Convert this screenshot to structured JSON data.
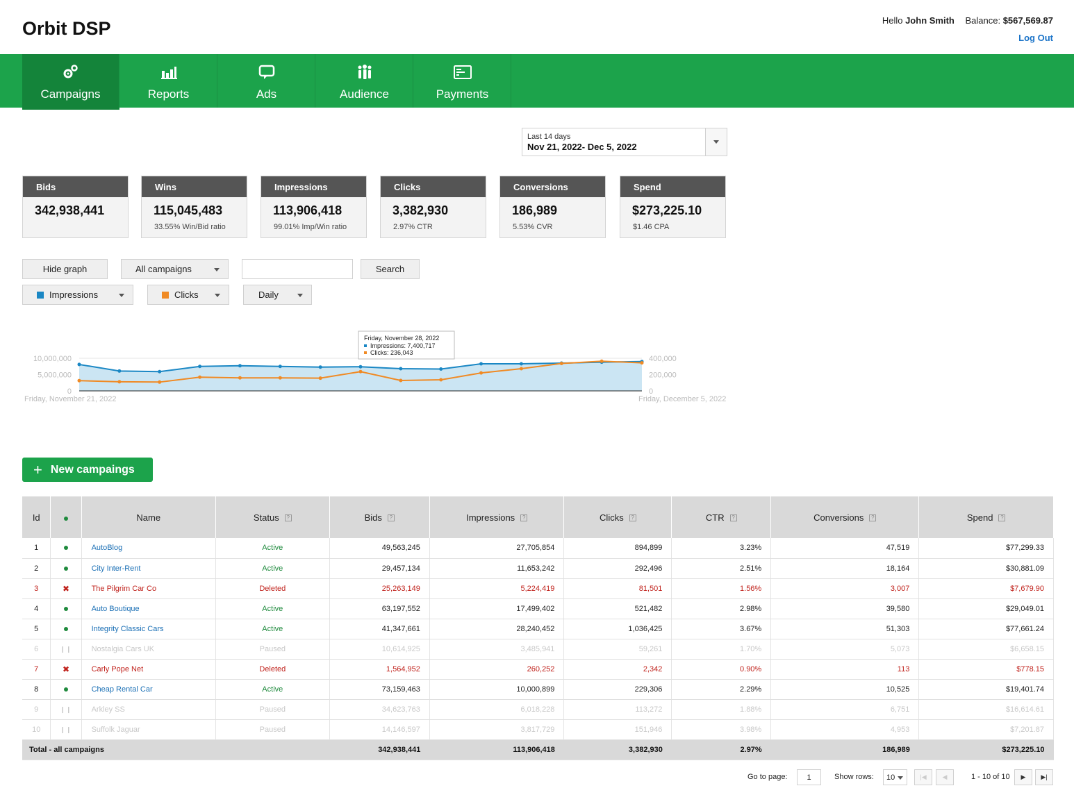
{
  "app": {
    "title": "Orbit DSP",
    "greeting": "Hello",
    "user_name": "John Smith",
    "balance_label": "Balance:",
    "balance": "$567,569.87",
    "logout": "Log Out"
  },
  "nav": {
    "items": [
      {
        "label": "Campaigns",
        "icon": "gears-icon",
        "active": true
      },
      {
        "label": "Reports",
        "icon": "bar-chart-icon",
        "active": false
      },
      {
        "label": "Ads",
        "icon": "speech-bubble-icon",
        "active": false
      },
      {
        "label": "Audience",
        "icon": "people-icon",
        "active": false
      },
      {
        "label": "Payments",
        "icon": "credit-card-icon",
        "active": false
      }
    ]
  },
  "date_picker": {
    "preset": "Last 14 days",
    "range": "Nov 21, 2022- Dec 5, 2022"
  },
  "stats": [
    {
      "title": "Bids",
      "value": "342,938,441",
      "sub": ""
    },
    {
      "title": "Wins",
      "value": "115,045,483",
      "sub": "33.55% Win/Bid ratio"
    },
    {
      "title": "Impressions",
      "value": "113,906,418",
      "sub": "99.01% Imp/Win ratio"
    },
    {
      "title": "Clicks",
      "value": "3,382,930",
      "sub": "2.97% CTR"
    },
    {
      "title": "Conversions",
      "value": "186,989",
      "sub": "5.53% CVR"
    },
    {
      "title": "Spend",
      "value": "$273,225.10",
      "sub": "$1.46 CPA"
    }
  ],
  "controls": {
    "hide_graph": "Hide graph",
    "campaign_filter": "All campaigns",
    "search_value": "",
    "search_button": "Search",
    "metric1": "Impressions",
    "metric2": "Clicks",
    "granularity": "Daily"
  },
  "colors": {
    "brand": "#1ca34b",
    "impressions": "#1a87c4",
    "clicks": "#f08a24",
    "deleted": "#c0221c",
    "active": "#1f8a3d"
  },
  "chart_data": {
    "type": "line",
    "x": [
      "2022-11-21",
      "2022-11-22",
      "2022-11-23",
      "2022-11-24",
      "2022-11-25",
      "2022-11-26",
      "2022-11-27",
      "2022-11-28",
      "2022-11-29",
      "2022-11-30",
      "2022-12-01",
      "2022-12-02",
      "2022-12-03",
      "2022-12-04",
      "2022-12-05"
    ],
    "start_label": "Friday, November 21, 2022",
    "end_label": "Friday, December 5, 2022",
    "left_ticks": [
      "10,000,000",
      "5,000,000",
      "0"
    ],
    "right_ticks": [
      "400,000",
      "200,000",
      "0"
    ],
    "ylim_left": [
      0,
      10000000
    ],
    "ylim_right": [
      0,
      400000
    ],
    "series": [
      {
        "name": "Impressions",
        "axis": "left",
        "values": [
          8100000,
          6100000,
          5900000,
          7500000,
          7700000,
          7500000,
          7300000,
          7400717,
          6800000,
          6700000,
          8300000,
          8300000,
          8500000,
          8800000,
          9000000
        ]
      },
      {
        "name": "Clicks",
        "axis": "right",
        "values": [
          126000,
          112000,
          108000,
          168000,
          160000,
          160000,
          156000,
          236043,
          128000,
          136000,
          220000,
          272000,
          336000,
          364000,
          344000
        ]
      }
    ],
    "tooltip": {
      "title": "Friday, November 28, 2022",
      "impressions": "Impressions: 7,400,717",
      "clicks": "Clicks: 236,043"
    }
  },
  "new_campaign_button": "New campaings",
  "table": {
    "headers": [
      "Id",
      "",
      "Name",
      "Status",
      "Bids",
      "Impressions",
      "Clicks",
      "CTR",
      "Conversions",
      "Spend"
    ],
    "rows": [
      {
        "id": "1",
        "state": "active",
        "name": "AutoBlog",
        "status": "Active",
        "bids": "49,563,245",
        "impressions": "27,705,854",
        "clicks": "894,899",
        "ctr": "3.23%",
        "conversions": "47,519",
        "spend": "$77,299.33"
      },
      {
        "id": "2",
        "state": "active",
        "name": "City Inter-Rent",
        "status": "Active",
        "bids": "29,457,134",
        "impressions": "11,653,242",
        "clicks": "292,496",
        "ctr": "2.51%",
        "conversions": "18,164",
        "spend": "$30,881.09"
      },
      {
        "id": "3",
        "state": "deleted",
        "name": "The Pilgrim Car Co",
        "status": "Deleted",
        "bids": "25,263,149",
        "impressions": "5,224,419",
        "clicks": "81,501",
        "ctr": "1.56%",
        "conversions": "3,007",
        "spend": "$7,679.90"
      },
      {
        "id": "4",
        "state": "active",
        "name": "Auto Boutique",
        "status": "Active",
        "bids": "63,197,552",
        "impressions": "17,499,402",
        "clicks": "521,482",
        "ctr": "2.98%",
        "conversions": "39,580",
        "spend": "$29,049.01"
      },
      {
        "id": "5",
        "state": "active",
        "name": "Integrity Classic Cars",
        "status": "Active",
        "bids": "41,347,661",
        "impressions": "28,240,452",
        "clicks": "1,036,425",
        "ctr": "3.67%",
        "conversions": "51,303",
        "spend": "$77,661.24"
      },
      {
        "id": "6",
        "state": "paused",
        "name": "Nostalgia Cars UK",
        "status": "Paused",
        "bids": "10,614,925",
        "impressions": "3,485,941",
        "clicks": "59,261",
        "ctr": "1.70%",
        "conversions": "5,073",
        "spend": "$6,658.15"
      },
      {
        "id": "7",
        "state": "deleted",
        "name": "Carly Pope Net",
        "status": "Deleted",
        "bids": "1,564,952",
        "impressions": "260,252",
        "clicks": "2,342",
        "ctr": "0.90%",
        "conversions": "113",
        "spend": "$778.15"
      },
      {
        "id": "8",
        "state": "active",
        "name": "Cheap Rental Car",
        "status": "Active",
        "bids": "73,159,463",
        "impressions": "10,000,899",
        "clicks": "229,306",
        "ctr": "2.29%",
        "conversions": "10,525",
        "spend": "$19,401.74"
      },
      {
        "id": "9",
        "state": "paused",
        "name": "Arkley SS",
        "status": "Paused",
        "bids": "34,623,763",
        "impressions": "6,018,228",
        "clicks": "113,272",
        "ctr": "1.88%",
        "conversions": "6,751",
        "spend": "$16,614.61"
      },
      {
        "id": "10",
        "state": "paused",
        "name": "Suffolk Jaguar",
        "status": "Paused",
        "bids": "14,146,597",
        "impressions": "3,817,729",
        "clicks": "151,946",
        "ctr": "3.98%",
        "conversions": "4,953",
        "spend": "$7,201.87"
      }
    ],
    "total": {
      "label": "Total - all campaigns",
      "bids": "342,938,441",
      "impressions": "113,906,418",
      "clicks": "3,382,930",
      "ctr": "2.97%",
      "conversions": "186,989",
      "spend": "$273,225.10"
    }
  },
  "pagination": {
    "goto_label": "Go to page:",
    "goto_value": "1",
    "rows_label": "Show rows:",
    "rows_value": "10",
    "range_text": "1 - 10 of 10"
  }
}
